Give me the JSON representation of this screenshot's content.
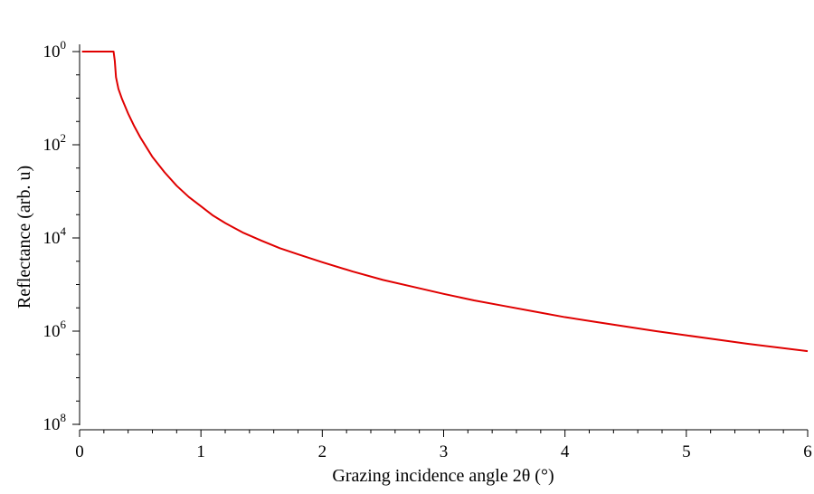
{
  "chart_data": {
    "type": "line",
    "xlabel": "Grazing incidence angle 2θ (°)",
    "ylabel": "Reflectance (arb. u)",
    "xlim": [
      0,
      6
    ],
    "ylim_exponent": [
      0,
      8
    ],
    "y_scale": "log",
    "y_axis_inverted": true,
    "grid": false,
    "x_ticks": [
      "0",
      "1",
      "2",
      "3",
      "4",
      "5",
      "6"
    ],
    "y_ticks": [
      {
        "base": "10",
        "exp": "0"
      },
      {
        "base": "10",
        "exp": "2"
      },
      {
        "base": "10",
        "exp": "4"
      },
      {
        "base": "10",
        "exp": "6"
      },
      {
        "base": "10",
        "exp": "8"
      }
    ],
    "series": [
      {
        "color": "#e00000",
        "x": [
          0.02,
          0.28,
          0.29,
          0.3,
          0.32,
          0.35,
          0.4,
          0.45,
          0.5,
          0.55,
          0.6,
          0.7,
          0.8,
          0.9,
          1.0,
          1.1,
          1.2,
          1.35,
          1.5,
          1.65,
          1.8,
          2.0,
          2.25,
          2.5,
          2.75,
          3.0,
          3.25,
          3.5,
          3.75,
          4.0,
          4.25,
          4.5,
          4.75,
          5.0,
          5.25,
          5.5,
          5.75,
          6.0
        ],
        "y_exponent": [
          0.0,
          0.0,
          0.2,
          0.55,
          0.8,
          1.02,
          1.33,
          1.6,
          1.84,
          2.05,
          2.26,
          2.59,
          2.88,
          3.12,
          3.32,
          3.52,
          3.68,
          3.89,
          4.06,
          4.22,
          4.35,
          4.52,
          4.72,
          4.9,
          5.05,
          5.2,
          5.34,
          5.46,
          5.58,
          5.7,
          5.8,
          5.9,
          6.0,
          6.09,
          6.18,
          6.27,
          6.35,
          6.43
        ]
      }
    ]
  }
}
